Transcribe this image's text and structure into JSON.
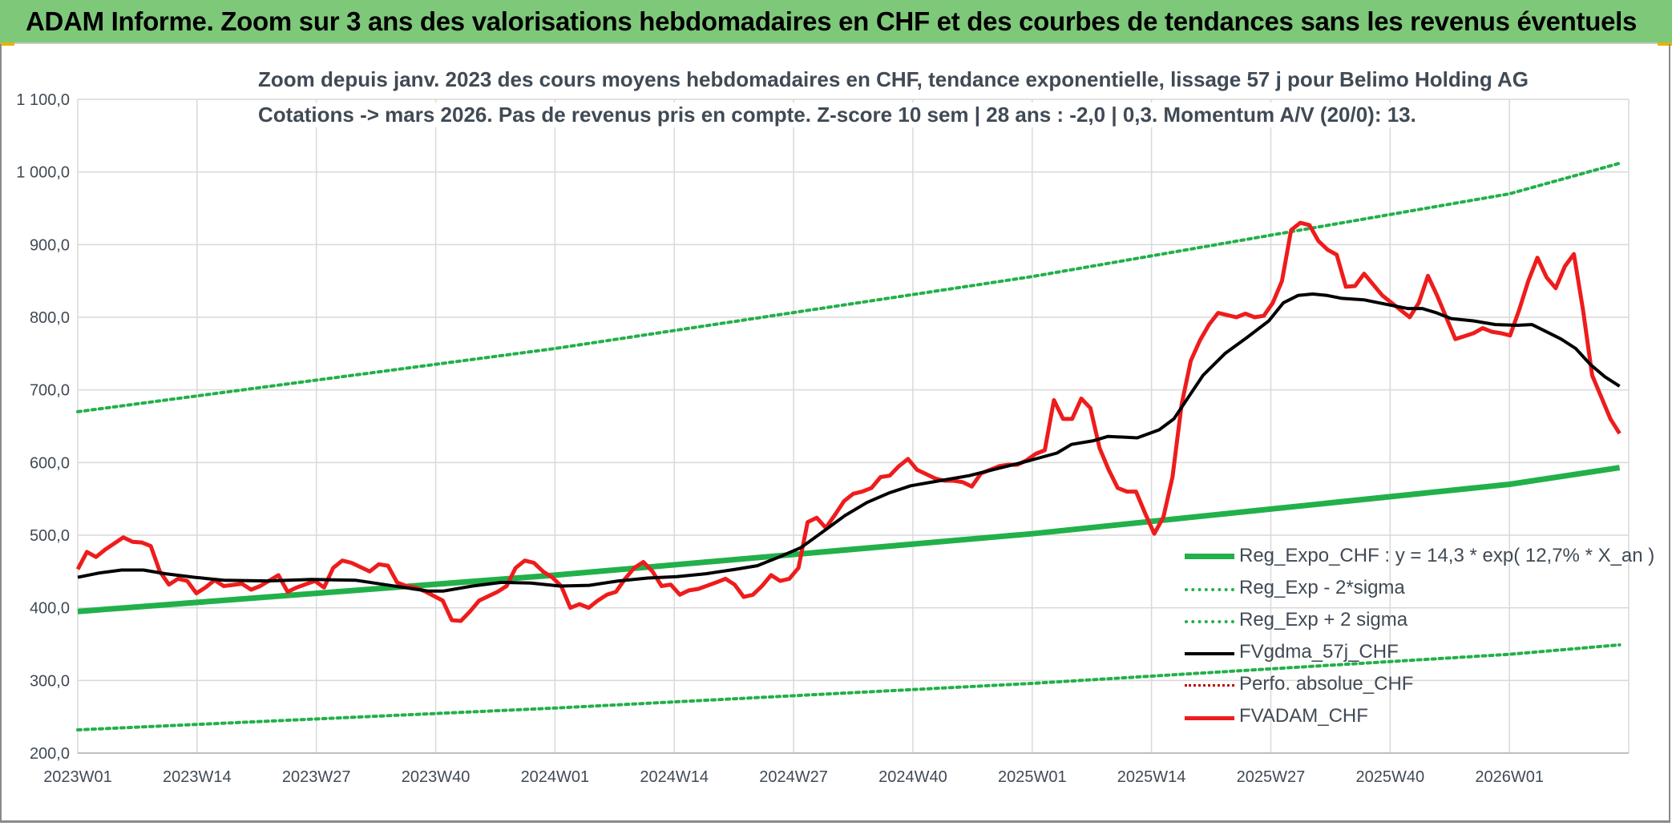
{
  "banner": {
    "title": "ADAM Informe. Zoom sur 3 ans des valorisations hebdomadaires en CHF et des courbes de tendances sans les revenus éventuels"
  },
  "colors": {
    "banner_bg": "#7ec87a",
    "reg_expo": "#22b04a",
    "reg_bands": "#22b04a",
    "fvgdma": "#000000",
    "perfo": "#c00000",
    "fvadam": "#ee1c1c",
    "grid": "#d9d9d9",
    "axis_text": "#404a55"
  },
  "chart_data": {
    "type": "line",
    "title_line1": "Zoom depuis janv. 2023 des cours moyens hebdomadaires en CHF, tendance exponentielle, lissage 57 j pour Belimo Holding AG",
    "title_line2": "Cotations -> mars 2026. Pas de revenus pris en compte. Z-score 10 sem | 28 ans : -2,0 | 0,3. Momentum A/V (20/0): 13.",
    "ylim": [
      200,
      1100
    ],
    "yticks": [
      "200,0",
      "300,0",
      "400,0",
      "500,0",
      "600,0",
      "700,0",
      "800,0",
      "900,0",
      "1 000,0",
      "1 100,0"
    ],
    "xticks": [
      "2023W01",
      "2023W14",
      "2023W27",
      "2023W40",
      "2024W01",
      "2024W14",
      "2024W27",
      "2024W40",
      "2025W01",
      "2025W14",
      "2025W27",
      "2025W40",
      "2026W01"
    ],
    "n_weeks": 169,
    "grid": "horizontal and vertical",
    "legend_position": "bottom-right",
    "series": [
      {
        "name": "Reg_Expo_CHF : y = 14,3 * exp( 12,7% *  X_an )",
        "style": "solid-thick",
        "points": [
          [
            0,
            395
          ],
          [
            52,
            445
          ],
          [
            104,
            502
          ],
          [
            156,
            570
          ],
          [
            168,
            593
          ]
        ]
      },
      {
        "name": "Reg_Exp - 2*sigma",
        "style": "dotted",
        "points": [
          [
            0,
            232
          ],
          [
            52,
            262
          ],
          [
            104,
            296
          ],
          [
            156,
            336
          ],
          [
            168,
            349
          ]
        ]
      },
      {
        "name": "Reg_Exp + 2 sigma",
        "style": "dotted",
        "points": [
          [
            0,
            670
          ],
          [
            52,
            757
          ],
          [
            104,
            856
          ],
          [
            156,
            970
          ],
          [
            168,
            1012
          ]
        ]
      },
      {
        "name": "FVgdma_57j_CHF",
        "style": "solid",
        "points": [
          [
            0,
            442
          ],
          [
            3,
            448
          ],
          [
            6,
            452
          ],
          [
            9,
            452
          ],
          [
            12,
            447
          ],
          [
            16,
            442
          ],
          [
            20,
            438
          ],
          [
            26,
            437
          ],
          [
            32,
            439
          ],
          [
            38,
            438
          ],
          [
            42,
            432
          ],
          [
            46,
            426
          ],
          [
            48,
            423
          ],
          [
            50,
            423
          ],
          [
            54,
            430
          ],
          [
            58,
            435
          ],
          [
            62,
            434
          ],
          [
            66,
            430
          ],
          [
            70,
            431
          ],
          [
            74,
            437
          ],
          [
            78,
            441
          ],
          [
            82,
            443
          ],
          [
            86,
            447
          ],
          [
            90,
            453
          ],
          [
            93,
            458
          ],
          [
            96,
            470
          ],
          [
            99,
            483
          ],
          [
            102,
            505
          ],
          [
            105,
            527
          ],
          [
            108,
            545
          ],
          [
            111,
            558
          ],
          [
            114,
            568
          ],
          [
            118,
            575
          ],
          [
            122,
            582
          ],
          [
            126,
            592
          ],
          [
            130,
            602
          ],
          [
            134,
            613
          ],
          [
            136,
            625
          ],
          [
            139,
            630
          ],
          [
            141,
            636
          ],
          [
            145,
            634
          ],
          [
            148,
            645
          ],
          [
            150,
            660
          ],
          [
            152,
            690
          ],
          [
            154,
            720
          ],
          [
            157,
            750
          ],
          [
            160,
            772
          ],
          [
            163,
            795
          ],
          [
            165,
            820
          ],
          [
            167,
            830
          ],
          [
            169,
            832
          ],
          [
            171,
            830
          ],
          [
            173,
            826
          ],
          [
            176,
            824
          ],
          [
            179,
            818
          ],
          [
            182,
            812
          ],
          [
            184,
            812
          ],
          [
            186,
            806
          ],
          [
            188,
            798
          ],
          [
            191,
            795
          ],
          [
            194,
            790
          ],
          [
            197,
            789
          ],
          [
            199,
            790
          ],
          [
            201,
            780
          ],
          [
            203,
            770
          ],
          [
            205,
            757
          ],
          [
            207,
            735
          ],
          [
            209,
            718
          ],
          [
            211,
            705
          ]
        ]
      },
      {
        "name": "Perfo. absolue_CHF",
        "style": "dotted-thin",
        "points": []
      },
      {
        "name": "FVADAM_CHF",
        "style": "solid-thick",
        "points": [
          [
            0,
            453
          ],
          [
            1,
            477
          ],
          [
            2,
            470
          ],
          [
            3,
            480
          ],
          [
            5,
            497
          ],
          [
            6,
            491
          ],
          [
            7,
            490
          ],
          [
            8,
            485
          ],
          [
            9,
            450
          ],
          [
            10,
            432
          ],
          [
            11,
            440
          ],
          [
            12,
            437
          ],
          [
            13,
            420
          ],
          [
            14,
            428
          ],
          [
            15,
            438
          ],
          [
            16,
            430
          ],
          [
            18,
            433
          ],
          [
            19,
            425
          ],
          [
            20,
            430
          ],
          [
            22,
            445
          ],
          [
            23,
            422
          ],
          [
            24,
            428
          ],
          [
            26,
            437
          ],
          [
            27,
            428
          ],
          [
            28,
            455
          ],
          [
            29,
            465
          ],
          [
            30,
            462
          ],
          [
            32,
            450
          ],
          [
            33,
            460
          ],
          [
            34,
            458
          ],
          [
            35,
            435
          ],
          [
            36,
            430
          ],
          [
            37,
            428
          ],
          [
            38,
            423
          ],
          [
            40,
            410
          ],
          [
            41,
            383
          ],
          [
            42,
            382
          ],
          [
            43,
            395
          ],
          [
            44,
            410
          ],
          [
            46,
            422
          ],
          [
            47,
            430
          ],
          [
            48,
            455
          ],
          [
            49,
            465
          ],
          [
            50,
            462
          ],
          [
            51,
            450
          ],
          [
            52,
            442
          ],
          [
            53,
            430
          ],
          [
            54,
            400
          ],
          [
            55,
            405
          ],
          [
            56,
            400
          ],
          [
            57,
            410
          ],
          [
            58,
            418
          ],
          [
            59,
            422
          ],
          [
            60,
            440
          ],
          [
            61,
            455
          ],
          [
            62,
            463
          ],
          [
            63,
            450
          ],
          [
            64,
            430
          ],
          [
            65,
            432
          ],
          [
            66,
            418
          ],
          [
            67,
            424
          ],
          [
            68,
            426
          ],
          [
            70,
            435
          ],
          [
            71,
            440
          ],
          [
            72,
            432
          ],
          [
            73,
            415
          ],
          [
            74,
            418
          ],
          [
            75,
            430
          ],
          [
            76,
            445
          ],
          [
            77,
            437
          ],
          [
            78,
            440
          ],
          [
            79,
            455
          ],
          [
            80,
            518
          ],
          [
            81,
            524
          ],
          [
            82,
            510
          ],
          [
            83,
            528
          ],
          [
            84,
            547
          ],
          [
            85,
            557
          ],
          [
            86,
            560
          ],
          [
            87,
            565
          ],
          [
            88,
            580
          ],
          [
            89,
            582
          ],
          [
            90,
            595
          ],
          [
            91,
            605
          ],
          [
            92,
            590
          ],
          [
            93,
            584
          ],
          [
            94,
            578
          ],
          [
            95,
            575
          ],
          [
            96,
            575
          ],
          [
            97,
            573
          ],
          [
            98,
            567
          ],
          [
            99,
            585
          ],
          [
            100,
            590
          ],
          [
            101,
            595
          ],
          [
            102,
            597
          ],
          [
            103,
            597
          ],
          [
            104,
            603
          ],
          [
            105,
            612
          ],
          [
            106,
            617
          ],
          [
            107,
            686
          ],
          [
            108,
            660
          ],
          [
            109,
            660
          ],
          [
            110,
            688
          ],
          [
            111,
            675
          ],
          [
            112,
            620
          ],
          [
            113,
            590
          ],
          [
            114,
            565
          ],
          [
            115,
            560
          ],
          [
            116,
            560
          ],
          [
            117,
            530
          ],
          [
            118,
            502
          ],
          [
            119,
            525
          ],
          [
            120,
            580
          ],
          [
            121,
            680
          ],
          [
            122,
            740
          ],
          [
            123,
            768
          ],
          [
            124,
            790
          ],
          [
            125,
            806
          ],
          [
            126,
            803
          ],
          [
            127,
            800
          ],
          [
            128,
            805
          ],
          [
            129,
            800
          ],
          [
            130,
            802
          ],
          [
            131,
            820
          ],
          [
            132,
            850
          ],
          [
            133,
            920
          ],
          [
            134,
            930
          ],
          [
            135,
            927
          ],
          [
            136,
            905
          ],
          [
            137,
            893
          ],
          [
            138,
            886
          ],
          [
            139,
            842
          ],
          [
            140,
            843
          ],
          [
            141,
            860
          ],
          [
            143,
            830
          ],
          [
            145,
            810
          ],
          [
            146,
            800
          ],
          [
            147,
            820
          ],
          [
            148,
            857
          ],
          [
            149,
            830
          ],
          [
            151,
            770
          ],
          [
            152,
            774
          ],
          [
            153,
            778
          ],
          [
            154,
            785
          ],
          [
            155,
            780
          ],
          [
            156,
            778
          ],
          [
            157,
            775
          ],
          [
            158,
            810
          ],
          [
            159,
            850
          ],
          [
            160,
            882
          ],
          [
            161,
            855
          ],
          [
            162,
            840
          ],
          [
            163,
            870
          ],
          [
            164,
            887
          ],
          [
            165,
            810
          ],
          [
            166,
            720
          ],
          [
            167,
            690
          ],
          [
            168,
            660
          ],
          [
            169,
            640
          ]
        ]
      }
    ]
  }
}
